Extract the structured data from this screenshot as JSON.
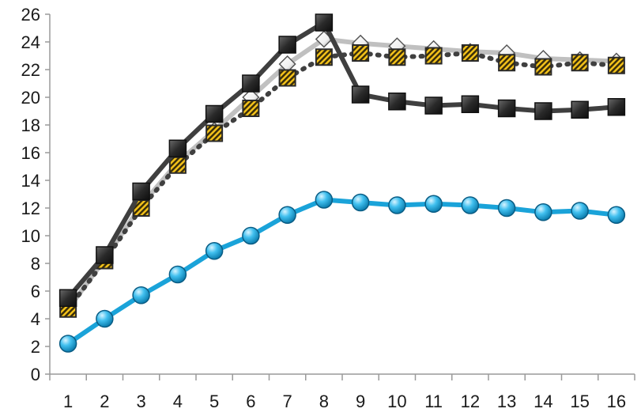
{
  "chart_data": {
    "type": "line",
    "title": "",
    "xlabel": "",
    "ylabel": "",
    "categories": [
      1,
      2,
      3,
      4,
      5,
      6,
      7,
      8,
      9,
      10,
      11,
      12,
      13,
      14,
      15,
      16
    ],
    "ylim": [
      0,
      26
    ],
    "yticks": [
      0,
      2,
      4,
      6,
      8,
      10,
      12,
      14,
      16,
      18,
      20,
      22,
      24,
      26
    ],
    "grid": false,
    "legend": "none",
    "series": [
      {
        "style": "light-gray-line-white-diamond",
        "color": "#c0c0c0",
        "values": [
          4.7,
          8.3,
          12.2,
          15.3,
          17.6,
          20.0,
          22.4,
          24.2,
          23.9,
          23.7,
          23.5,
          23.3,
          23.2,
          22.8,
          22.7,
          22.6
        ]
      },
      {
        "style": "dotted-dark-line-gold-hatched-square",
        "color": "#404040",
        "values": [
          4.7,
          8.2,
          12.0,
          15.1,
          17.4,
          19.2,
          21.4,
          22.9,
          23.2,
          22.9,
          23.0,
          23.2,
          22.5,
          22.2,
          22.5,
          22.3
        ]
      },
      {
        "style": "dark-gray-line-black-square",
        "color": "#3f3f3f",
        "values": [
          5.5,
          8.6,
          13.2,
          16.3,
          18.8,
          21.0,
          23.8,
          25.4,
          20.2,
          19.7,
          19.4,
          19.5,
          19.2,
          19.0,
          19.1,
          19.3
        ]
      },
      {
        "style": "cyan-line-cyan-circle",
        "color": "#1aa3d9",
        "values": [
          2.2,
          4.0,
          5.7,
          7.2,
          8.9,
          10.0,
          11.5,
          12.6,
          12.4,
          12.2,
          12.3,
          12.2,
          12.0,
          11.7,
          11.8,
          11.5
        ]
      }
    ]
  }
}
